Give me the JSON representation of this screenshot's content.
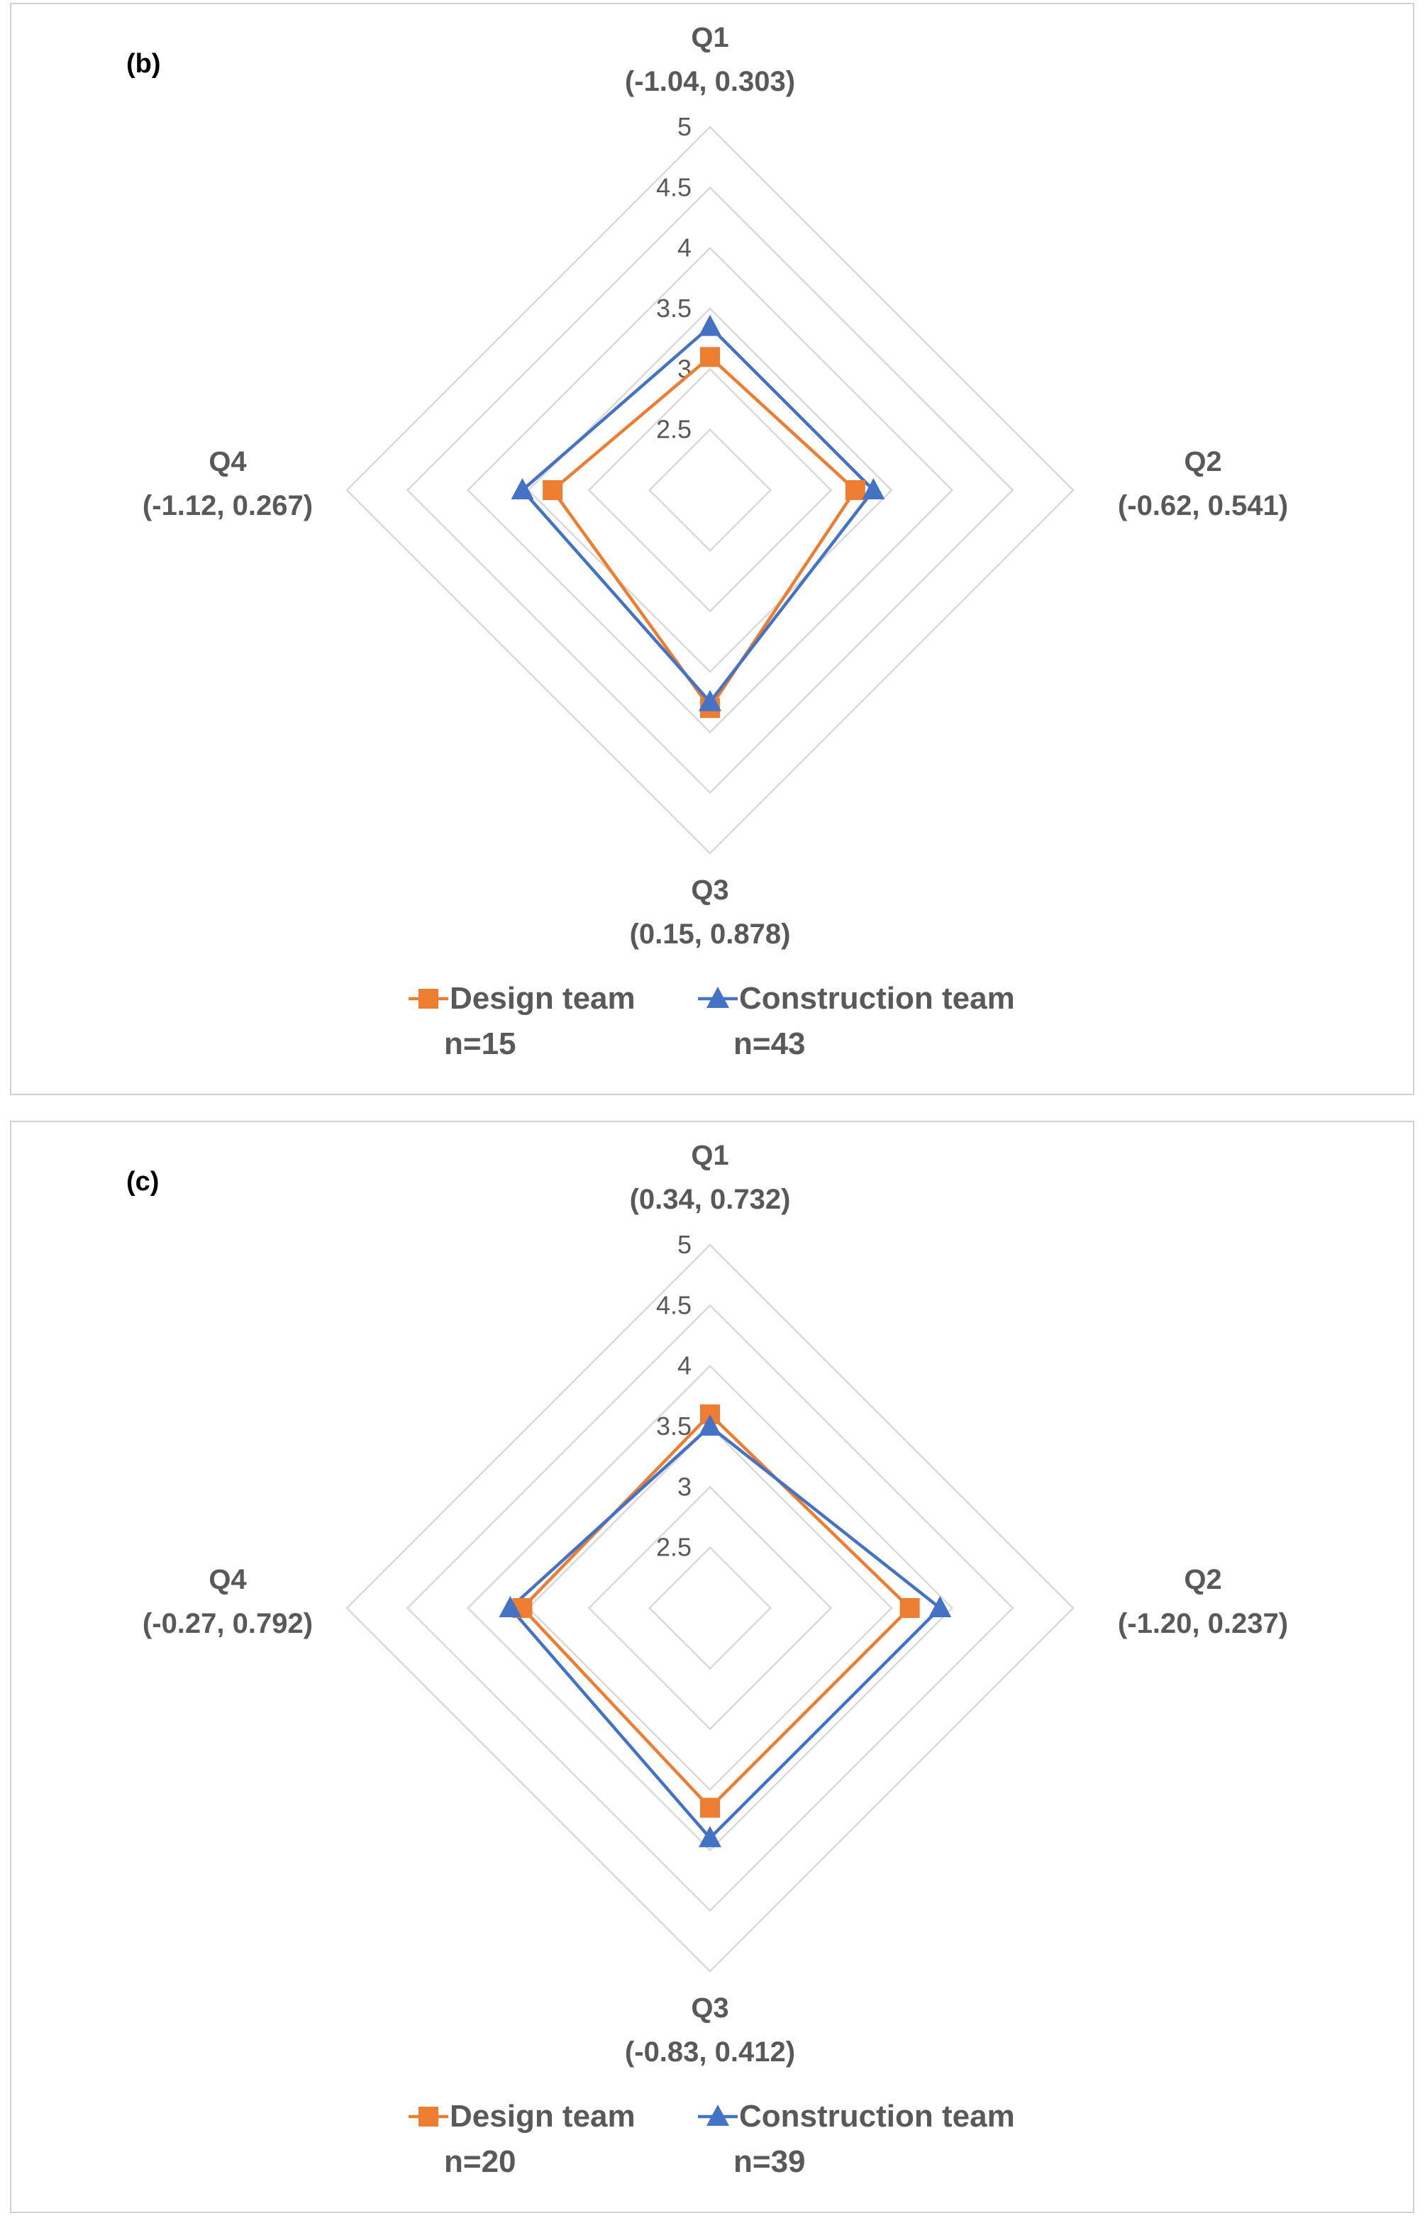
{
  "chart_data": [
    {
      "type": "radar",
      "panel_label": "(b)",
      "axes": [
        {
          "name": "Q1",
          "stat": "(-1.04, 0.303)"
        },
        {
          "name": "Q2",
          "stat": "(-0.62, 0.541)"
        },
        {
          "name": "Q3",
          "stat": "(0.15, 0.878)"
        },
        {
          "name": "Q4",
          "stat": "(-1.12, 0.267)"
        }
      ],
      "rlim": [
        2,
        5
      ],
      "ticks": [
        "2.5",
        "3",
        "3.5",
        "4",
        "4.5",
        "5"
      ],
      "series": [
        {
          "name": "Design team",
          "n_label": "n=15",
          "color": "#ED7D31",
          "marker": "square",
          "values": [
            3.1,
            3.2,
            3.8,
            3.3
          ]
        },
        {
          "name": "Construction team",
          "n_label": "n=43",
          "color": "#4472C4",
          "marker": "triangle",
          "values": [
            3.35,
            3.35,
            3.75,
            3.55
          ]
        }
      ]
    },
    {
      "type": "radar",
      "panel_label": "(c)",
      "axes": [
        {
          "name": "Q1",
          "stat": "(0.34, 0.732)"
        },
        {
          "name": "Q2",
          "stat": "(-1.20, 0.237)"
        },
        {
          "name": "Q3",
          "stat": "(-0.83, 0.412)"
        },
        {
          "name": "Q4",
          "stat": "(-0.27, 0.792)"
        }
      ],
      "rlim": [
        2,
        5
      ],
      "ticks": [
        "2.5",
        "3",
        "3.5",
        "4",
        "4.5",
        "5"
      ],
      "series": [
        {
          "name": "Design team",
          "n_label": "n=20",
          "color": "#ED7D31",
          "marker": "square",
          "values": [
            3.6,
            3.65,
            3.65,
            3.55
          ]
        },
        {
          "name": "Construction team",
          "n_label": "n=39",
          "color": "#4472C4",
          "marker": "triangle",
          "values": [
            3.5,
            3.9,
            3.9,
            3.65
          ]
        }
      ]
    }
  ]
}
